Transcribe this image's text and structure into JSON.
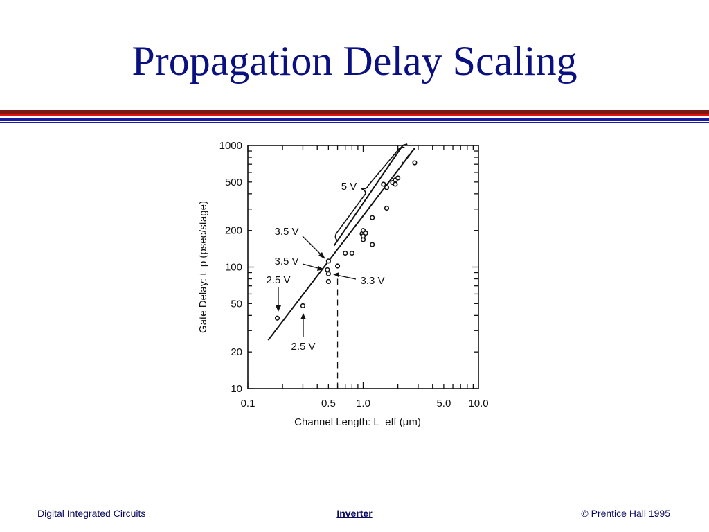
{
  "slide": {
    "title": "Propagation Delay Scaling"
  },
  "footer": {
    "left": "Digital Integrated Circuits",
    "center": "Inverter",
    "right": "© Prentice Hall 1995"
  },
  "colors": {
    "title": "#0a1080",
    "rule_dark_red": "#7a1a12",
    "rule_red": "#e01010",
    "rule_blue": "#1a1aa0",
    "ink": "#111111"
  },
  "chart_data": {
    "type": "scatter",
    "scale": "log-log",
    "xlabel": "Channel Length: L_eff (μm)",
    "ylabel": "Gate Delay: t_p (psec/stage)",
    "xlim": [
      0.1,
      10
    ],
    "ylim": [
      10,
      1000
    ],
    "x_ticks": [
      "0.1",
      "0.5",
      "1.0",
      "5.0",
      "10.0"
    ],
    "x_tick_values": [
      0.1,
      0.5,
      1.0,
      5.0,
      10.0
    ],
    "y_ticks": [
      "1000",
      "500",
      "200",
      "100",
      "50",
      "20",
      "10"
    ],
    "y_tick_values": [
      1000,
      500,
      200,
      100,
      50,
      20,
      10
    ],
    "grid": false,
    "points": [
      {
        "x": 0.18,
        "y": 38
      },
      {
        "x": 0.3,
        "y": 48
      },
      {
        "x": 0.5,
        "y": 112
      },
      {
        "x": 0.49,
        "y": 95
      },
      {
        "x": 0.5,
        "y": 88
      },
      {
        "x": 0.5,
        "y": 76
      },
      {
        "x": 0.6,
        "y": 102
      },
      {
        "x": 0.7,
        "y": 130
      },
      {
        "x": 0.8,
        "y": 130
      },
      {
        "x": 0.98,
        "y": 188
      },
      {
        "x": 1.0,
        "y": 200
      },
      {
        "x": 1.05,
        "y": 190
      },
      {
        "x": 1.0,
        "y": 168
      },
      {
        "x": 1.0,
        "y": 180
      },
      {
        "x": 1.2,
        "y": 153
      },
      {
        "x": 1.2,
        "y": 255
      },
      {
        "x": 1.5,
        "y": 480
      },
      {
        "x": 1.6,
        "y": 450
      },
      {
        "x": 1.6,
        "y": 305
      },
      {
        "x": 1.8,
        "y": 495
      },
      {
        "x": 1.9,
        "y": 520
      },
      {
        "x": 1.9,
        "y": 480
      },
      {
        "x": 2.0,
        "y": 540
      },
      {
        "x": 2.8,
        "y": 720
      }
    ],
    "trend_line": {
      "x": [
        0.15,
        2.8
      ],
      "y": [
        25,
        950
      ]
    },
    "upper_bracket_line": {
      "x": [
        0.56,
        2.2
      ],
      "y": [
        150,
        1000
      ]
    },
    "vertical_dashed_line": {
      "x": 0.6
    },
    "annotations": [
      {
        "id": "ann-5v",
        "text": "5 V"
      },
      {
        "id": "ann-35v-upper",
        "text": "3.5 V"
      },
      {
        "id": "ann-35v-lower",
        "text": "3.5 V"
      },
      {
        "id": "ann-25v-upper",
        "text": "2.5 V"
      },
      {
        "id": "ann-25v-lower",
        "text": "2.5 V"
      },
      {
        "id": "ann-33v",
        "text": "3.3 V"
      }
    ]
  }
}
